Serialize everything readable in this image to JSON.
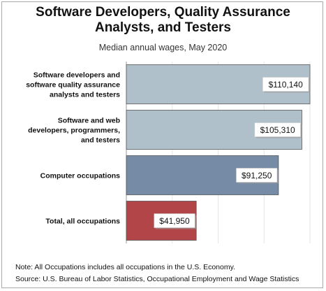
{
  "title_lines": [
    "Software Developers, Quality Assurance",
    "Analysts, and Testers"
  ],
  "subtitle": "Median annual wages, May 2020",
  "chart_data": {
    "type": "bar",
    "orientation": "horizontal",
    "title": "Software Developers, Quality Assurance Analysts, and Testers",
    "subtitle": "Median annual wages, May 2020",
    "categories": [
      [
        "Software developers and",
        "software quality assurance",
        "analysts and testers"
      ],
      [
        "Software and web",
        "developers, programmers,",
        "and testers"
      ],
      [
        "Computer occupations"
      ],
      [
        "Total, all occupations"
      ]
    ],
    "values": [
      110140,
      105310,
      91250,
      41950
    ],
    "value_labels": [
      "$110,140",
      "$105,310",
      "$91,250",
      "$41,950"
    ],
    "xlim": [
      0,
      110140
    ],
    "grid": true,
    "colors": {
      "bars": [
        "#b0c0cb",
        "#b0c0cb",
        "#768ca6",
        "#b14548"
      ],
      "bar_stroke": "#555555",
      "grid": "#e6e6e6",
      "axis": "#9a9a9a"
    }
  },
  "notes": {
    "note": "Note: All Occupations includes all occupations in the U.S. Economy.",
    "source": "Source: U.S. Bureau of Labor Statistics, Occupational Employment and Wage Statistics"
  }
}
